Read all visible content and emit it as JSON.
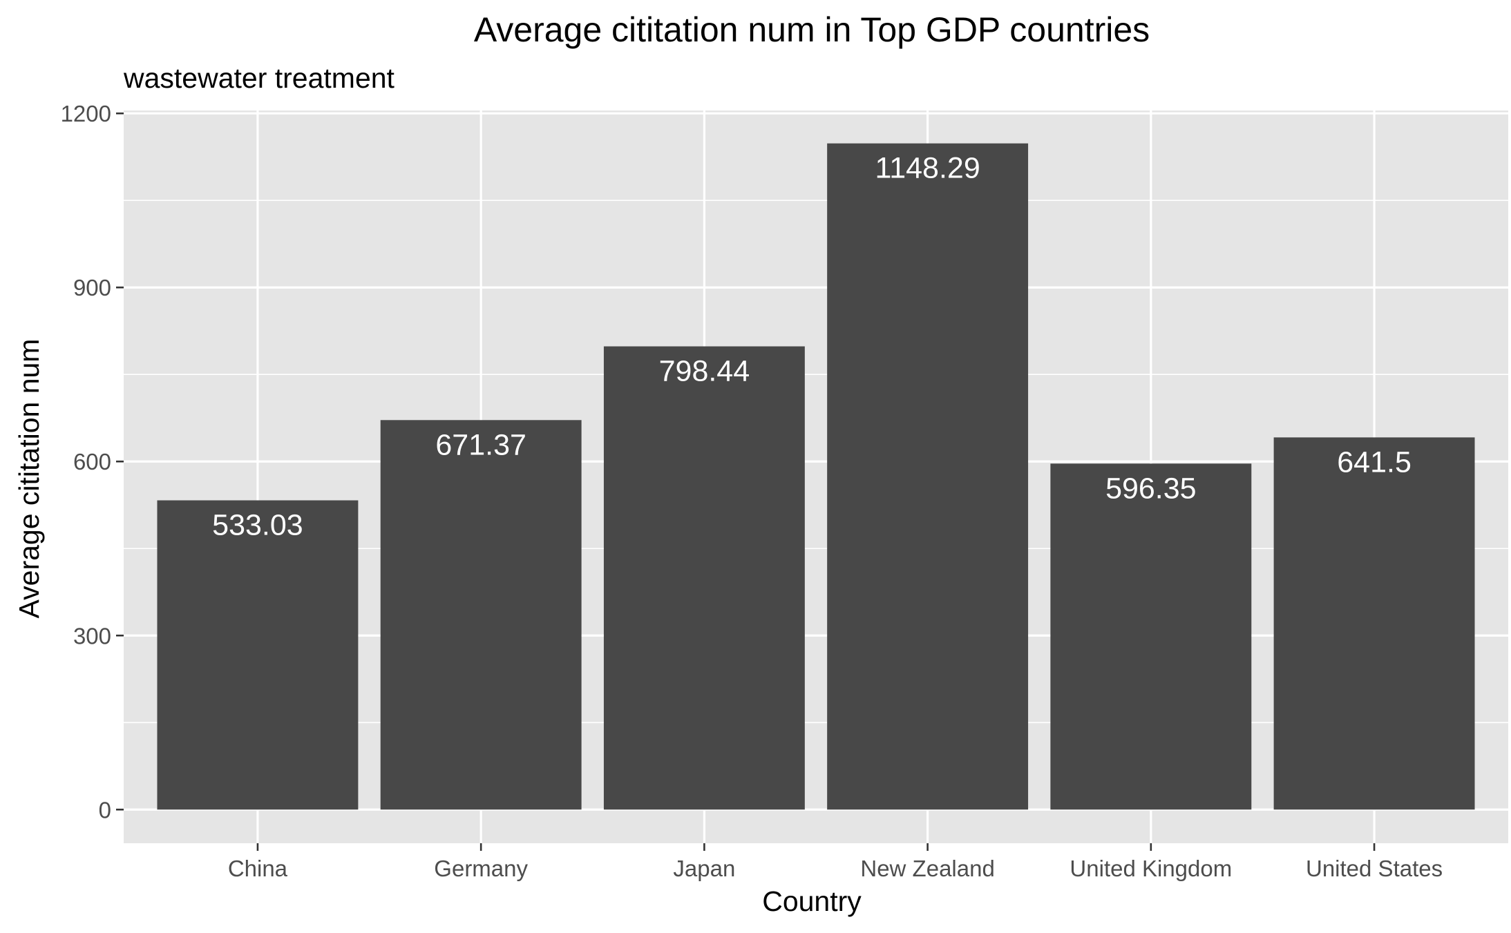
{
  "chart_data": {
    "type": "bar",
    "title": "Average cititation num in Top GDP countries",
    "subtitle": "wastewater treatment",
    "xlabel": "Country",
    "ylabel": "Average cititation num",
    "categories": [
      "China",
      "Germany",
      "Japan",
      "New Zealand",
      "United Kingdom",
      "United States"
    ],
    "values": [
      533.03,
      671.37,
      798.44,
      1148.29,
      596.35,
      641.5
    ],
    "value_labels": [
      "533.03",
      "671.37",
      "798.44",
      "1148.29",
      "596.35",
      "641.5"
    ],
    "ylim": [
      -58,
      1205
    ],
    "yticks": [
      0,
      300,
      600,
      900,
      1200
    ],
    "ytick_labels": [
      "0",
      "300",
      "600",
      "900",
      "1200"
    ],
    "grid": true,
    "legend": "none",
    "colors": {
      "bar": "#484848",
      "panel_background": "#e5e5e5",
      "grid": "#ffffff",
      "data_label": "#ffffff"
    }
  }
}
